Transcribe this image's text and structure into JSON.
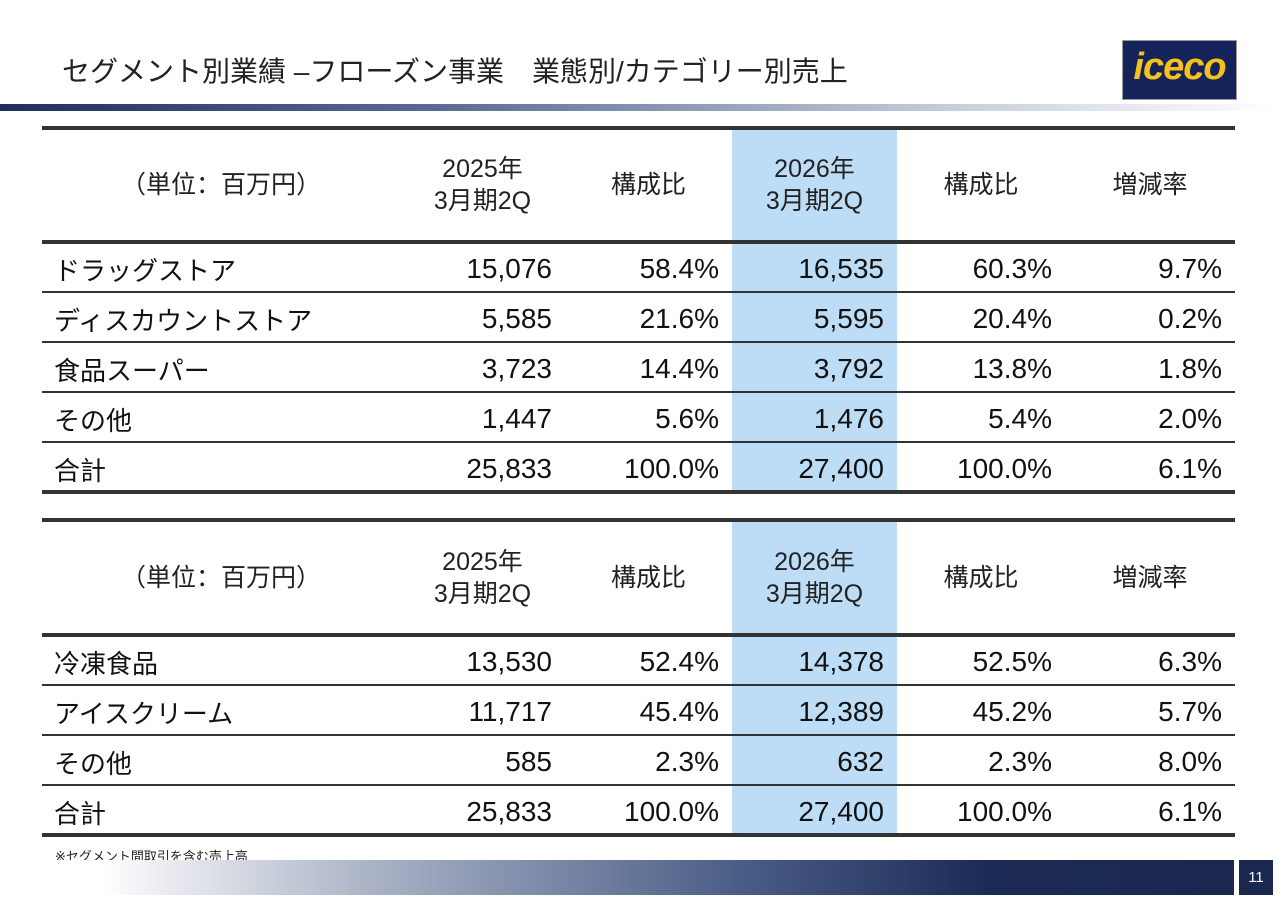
{
  "header": {
    "title": "セグメント別業績 –フローズン事業　業態別/カテゴリー別売上",
    "logo": "iceco"
  },
  "tables": [
    {
      "header": [
        "（単位：百万円）",
        [
          "2025年",
          "3月期2Q"
        ],
        "構成比",
        [
          "2026年",
          "3月期2Q"
        ],
        "構成比",
        "増減率"
      ],
      "rows": [
        [
          "ドラッグストア",
          "15,076",
          "58.4%",
          "16,535",
          "60.3%",
          "9.7%"
        ],
        [
          "ディスカウントストア",
          "5,585",
          "21.6%",
          "5,595",
          "20.4%",
          "0.2%"
        ],
        [
          "食品スーパー",
          "3,723",
          "14.4%",
          "3,792",
          "13.8%",
          "1.8%"
        ],
        [
          "その他",
          "1,447",
          "5.6%",
          "1,476",
          "5.4%",
          "2.0%"
        ],
        [
          "合計",
          "25,833",
          "100.0%",
          "27,400",
          "100.0%",
          "6.1%"
        ]
      ]
    },
    {
      "header": [
        "（単位：百万円）",
        [
          "2025年",
          "3月期2Q"
        ],
        "構成比",
        [
          "2026年",
          "3月期2Q"
        ],
        "構成比",
        "増減率"
      ],
      "rows": [
        [
          "冷凍食品",
          "13,530",
          "52.4%",
          "14,378",
          "52.5%",
          "6.3%"
        ],
        [
          "アイスクリーム",
          "11,717",
          "45.4%",
          "12,389",
          "45.2%",
          "5.7%"
        ],
        [
          "その他",
          "585",
          "2.3%",
          "632",
          "2.3%",
          "8.0%"
        ],
        [
          "合計",
          "25,833",
          "100.0%",
          "27,400",
          "100.0%",
          "6.1%"
        ]
      ]
    }
  ],
  "footnote": "※セグメント間取引を含む売上高",
  "page_number": "11"
}
